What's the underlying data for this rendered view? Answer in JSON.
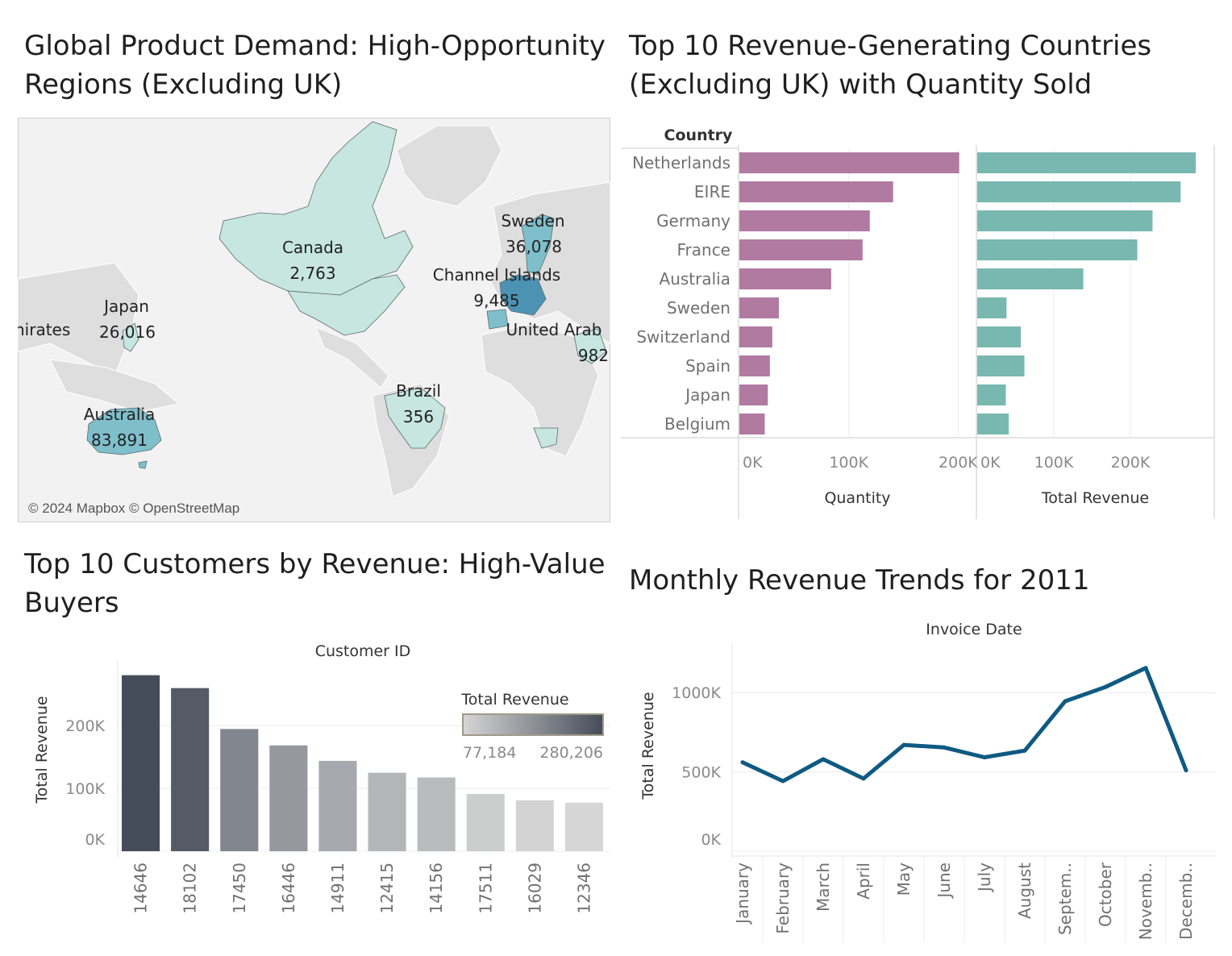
{
  "map_panel": {
    "title_line1": "Global Product Demand: High-Opportunity",
    "title_line2": "Regions (Excluding UK)",
    "attribution": "© 2024 Mapbox © OpenStreetMap",
    "colors": {
      "low": "#c6e6df",
      "mid": "#7fbfcc",
      "high": "#4c93b3",
      "land": "#dcdcdc",
      "ocean": "#f2f2f2"
    },
    "regions": [
      {
        "name": "Canada",
        "value": "2,763"
      },
      {
        "name": "Japan",
        "value": "26,016"
      },
      {
        "name": "Sweden",
        "value": "36,078"
      },
      {
        "name": "Channel Islands",
        "value": "9,485"
      },
      {
        "name": "United Arab",
        "value": "982"
      },
      {
        "name": "nirates",
        "value": ""
      },
      {
        "name": "Brazil",
        "value": "356"
      },
      {
        "name": "Australia",
        "value": "83,891"
      }
    ]
  },
  "chart_data": [
    {
      "type": "bar",
      "orientation": "horizontal",
      "title": "Top 10 Revenue-Generating Countries (Excluding UK) with Quantity Sold",
      "row_header": "Country",
      "categories": [
        "Netherlands",
        "EIRE",
        "Germany",
        "France",
        "Australia",
        "Sweden",
        "Switzerland",
        "Spain",
        "Japan",
        "Belgium"
      ],
      "series": [
        {
          "name": "Quantity",
          "color": "#b07aa1",
          "values": [
            200900,
            140500,
            119200,
            112600,
            83900,
            36100,
            30100,
            27900,
            26000,
            23200
          ],
          "xlim": [
            0,
            210000
          ],
          "ticks": [
            "0K",
            "100K",
            "200K"
          ]
        },
        {
          "name": "Total Revenue",
          "color": "#79b8b0",
          "values": [
            285400,
            265500,
            228900,
            209000,
            138500,
            38300,
            56900,
            61600,
            37400,
            41200
          ],
          "xlim": [
            0,
            300000
          ],
          "ticks": [
            "0K",
            "100K",
            "200K"
          ]
        }
      ]
    },
    {
      "type": "bar",
      "title": "Top 10 Customers by Revenue: High-Value Buyers",
      "xlabel": "Customer ID",
      "ylabel": "Total Revenue",
      "categories": [
        "14646",
        "18102",
        "17450",
        "16446",
        "14911",
        "12415",
        "14156",
        "17511",
        "16029",
        "12346"
      ],
      "values": [
        280206,
        259657,
        194551,
        168472,
        143825,
        124915,
        117379,
        91063,
        81025,
        77184
      ],
      "ylim": [
        0,
        290000
      ],
      "yticks": [
        "0K",
        "100K",
        "200K"
      ],
      "legend": {
        "title": "Total Revenue",
        "min": "77,184",
        "max": "280,206",
        "color_low": "#d6d6d6",
        "color_high": "#454c59",
        "placement": "top-right"
      }
    },
    {
      "type": "line",
      "title": "Monthly Revenue Trends for 2011",
      "xlabel": "Invoice Date",
      "ylabel": "Total Revenue",
      "categories": [
        "January",
        "February",
        "March",
        "April",
        "May",
        "June",
        "July",
        "August",
        "Septem..",
        "October",
        "Novemb..",
        "Decemb.."
      ],
      "values": [
        560000,
        442000,
        580000,
        458000,
        670000,
        654000,
        592000,
        634000,
        945000,
        1035000,
        1155000,
        510000
      ],
      "ylim": [
        0,
        1250000
      ],
      "yticks": [
        "0K",
        "500K",
        "1000K"
      ],
      "color": "#0f5a82"
    }
  ]
}
